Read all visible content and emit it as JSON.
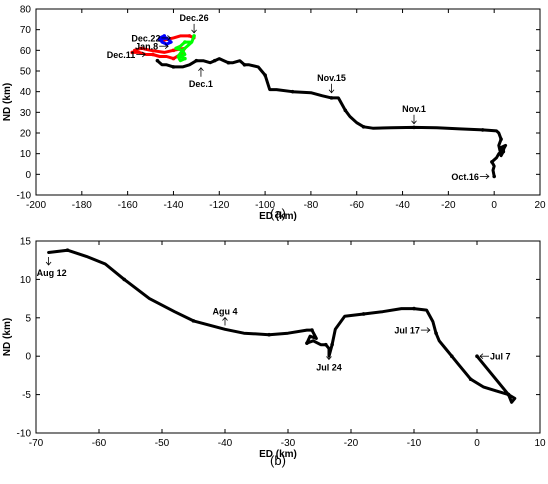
{
  "chart_data": [
    {
      "id": "a",
      "type": "line",
      "caption": "(a)",
      "xlabel": "ED (km)",
      "ylabel": "ND (km)",
      "xlim": [
        -200,
        20
      ],
      "ylim": [
        -10,
        80
      ],
      "xticks": [
        -200,
        -180,
        -160,
        -140,
        -120,
        -100,
        -80,
        -60,
        -40,
        -20,
        0,
        20
      ],
      "yticks": [
        -10,
        0,
        10,
        20,
        30,
        40,
        50,
        60,
        70,
        80
      ],
      "grid": false,
      "legend": "none",
      "series": [
        {
          "color": "#000000",
          "points": [
            [
              0,
              -1
            ],
            [
              -0.5,
              2
            ],
            [
              0,
              4
            ],
            [
              -1,
              6
            ],
            [
              1,
              8
            ],
            [
              2,
              10
            ],
            [
              4,
              12
            ],
            [
              5,
              14
            ],
            [
              3,
              13
            ],
            [
              4,
              11
            ],
            [
              3,
              9
            ],
            [
              2,
              14
            ],
            [
              3,
              17
            ],
            [
              2,
              20
            ],
            [
              1,
              21
            ],
            [
              -5,
              21.5
            ],
            [
              -15,
              22
            ],
            [
              -25,
              22.5
            ],
            [
              -35,
              22.7
            ],
            [
              -45,
              22.5
            ],
            [
              -53,
              22.3
            ],
            [
              -57,
              23
            ],
            [
              -60,
              25
            ],
            [
              -63,
              28
            ],
            [
              -65,
              31
            ],
            [
              -67,
              35
            ],
            [
              -68,
              37
            ],
            [
              -71,
              37
            ],
            [
              -75,
              38
            ],
            [
              -80,
              39.5
            ],
            [
              -88,
              40
            ],
            [
              -95,
              41
            ],
            [
              -98,
              41
            ],
            [
              -100,
              48
            ],
            [
              -103,
              52
            ],
            [
              -107,
              53
            ],
            [
              -109,
              53
            ],
            [
              -111,
              55
            ],
            [
              -114,
              54
            ],
            [
              -116,
              54
            ],
            [
              -118,
              55
            ],
            [
              -120,
              56
            ],
            [
              -122,
              55
            ],
            [
              -124,
              54
            ],
            [
              -127,
              55
            ],
            [
              -130,
              55
            ],
            [
              -133,
              53
            ],
            [
              -136,
              52
            ],
            [
              -140,
              52
            ],
            [
              -143,
              53
            ],
            [
              -145,
              53
            ],
            [
              -147,
              55
            ]
          ]
        },
        {
          "color": "#ff0000",
          "points": [
            [
              -158,
              59
            ],
            [
              -155,
              59
            ],
            [
              -152,
              58
            ],
            [
              -149,
              58
            ],
            [
              -146,
              57
            ],
            [
              -143,
              57
            ],
            [
              -140,
              56
            ],
            [
              -137,
              58
            ],
            [
              -135,
              61
            ],
            [
              -140,
              60
            ],
            [
              -144,
              59
            ],
            [
              -150,
              60
            ],
            [
              -154,
              61
            ],
            [
              -157,
              60
            ]
          ]
        },
        {
          "color": "#ff0000",
          "points": [
            [
              -144,
              65
            ],
            [
              -140,
              66
            ],
            [
              -137,
              67
            ],
            [
              -133,
              67
            ],
            [
              -131,
              66
            ]
          ]
        },
        {
          "color": "#00ff00",
          "points": [
            [
              -131,
              67
            ],
            [
              -132,
              64
            ],
            [
              -134,
              62
            ],
            [
              -136,
              60
            ],
            [
              -135,
              58
            ],
            [
              -137,
              57
            ],
            [
              -135,
              56
            ],
            [
              -137,
              55
            ],
            [
              -138,
              57
            ],
            [
              -136,
              60
            ],
            [
              -139,
              61
            ],
            [
              -137,
              62
            ],
            [
              -135,
              64
            ],
            [
              -132,
              64
            ]
          ]
        },
        {
          "color": "#0000ff",
          "points": [
            [
              -144,
              67
            ],
            [
              -146,
              66
            ],
            [
              -145,
              64
            ],
            [
              -143,
              63
            ],
            [
              -141,
              64
            ],
            [
              -143,
              66
            ],
            [
              -146,
              65
            ]
          ]
        }
      ],
      "annotations": [
        {
          "text": "Dec.26",
          "x": -131,
          "y": 67,
          "arrow": "down"
        },
        {
          "text": "Dec.22",
          "x": -140,
          "y": 66,
          "arrow": "right"
        },
        {
          "text": "Jan.8",
          "x": -141,
          "y": 62,
          "arrow": "right"
        },
        {
          "text": "Dec.11",
          "x": -151,
          "y": 58,
          "arrow": "right"
        },
        {
          "text": "Dec.1",
          "x": -128,
          "y": 53,
          "arrow": "up"
        },
        {
          "text": "Nov.15",
          "x": -71,
          "y": 38,
          "arrow": "down"
        },
        {
          "text": "Nov.1",
          "x": -35,
          "y": 23,
          "arrow": "down"
        },
        {
          "text": "Oct.16",
          "x": -1,
          "y": -1,
          "arrow": "right"
        }
      ]
    },
    {
      "id": "b",
      "type": "line",
      "caption": "(b)",
      "xlabel": "ED (km)",
      "ylabel": "ND (km)",
      "xlim": [
        -70,
        10
      ],
      "ylim": [
        -10,
        15
      ],
      "xticks": [
        -70,
        -60,
        -50,
        -40,
        -30,
        -20,
        -10,
        0,
        10
      ],
      "yticks": [
        -10,
        -5,
        0,
        5,
        10,
        15
      ],
      "grid": false,
      "legend": "none",
      "series": [
        {
          "color": "#000000",
          "points": [
            [
              0,
              0
            ],
            [
              2,
              -2
            ],
            [
              4,
              -4
            ],
            [
              5,
              -5
            ],
            [
              5.5,
              -6
            ],
            [
              6,
              -5.5
            ],
            [
              5,
              -5
            ],
            [
              3,
              -4.5
            ],
            [
              1,
              -4
            ],
            [
              -1,
              -3
            ],
            [
              -2,
              -2
            ],
            [
              -3,
              -1
            ],
            [
              -4,
              0
            ],
            [
              -5,
              1
            ],
            [
              -6,
              2
            ],
            [
              -6.5,
              3
            ],
            [
              -7,
              4.5
            ],
            [
              -8,
              6
            ],
            [
              -10,
              6.2
            ],
            [
              -12,
              6.2
            ],
            [
              -15,
              5.8
            ],
            [
              -18,
              5.5
            ],
            [
              -21,
              5.2
            ],
            [
              -22.5,
              3.5
            ],
            [
              -23,
              1.5
            ],
            [
              -23.5,
              0
            ],
            [
              -23.5,
              1
            ],
            [
              -24,
              1.5
            ],
            [
              -24.8,
              1.5
            ],
            [
              -26,
              2
            ],
            [
              -27,
              1.7
            ],
            [
              -26.5,
              2.6
            ],
            [
              -25.5,
              2.3
            ],
            [
              -26.2,
              3.4
            ],
            [
              -27,
              3.4
            ],
            [
              -30,
              3
            ],
            [
              -33,
              2.8
            ],
            [
              -37,
              3
            ],
            [
              -40,
              3.5
            ],
            [
              -45,
              4.6
            ],
            [
              -48,
              5.8
            ],
            [
              -52,
              7.5
            ],
            [
              -56,
              10
            ],
            [
              -59,
              12
            ],
            [
              -62,
              13
            ],
            [
              -65,
              13.8
            ],
            [
              -68,
              13.5
            ]
          ]
        }
      ],
      "annotations": [
        {
          "text": "Aug 12",
          "x": -68,
          "y": 13.3,
          "arrow": "down"
        },
        {
          "text": "Agu 4",
          "x": -40,
          "y": 3.6,
          "arrow": "up"
        },
        {
          "text": "Jul 24",
          "x": -23.5,
          "y": 1,
          "arrow": "down"
        },
        {
          "text": "Jul 17",
          "x": -7,
          "y": 3.4,
          "arrow": "right"
        },
        {
          "text": "Jul 7",
          "x": 0,
          "y": 0,
          "arrow": "left"
        }
      ]
    }
  ]
}
